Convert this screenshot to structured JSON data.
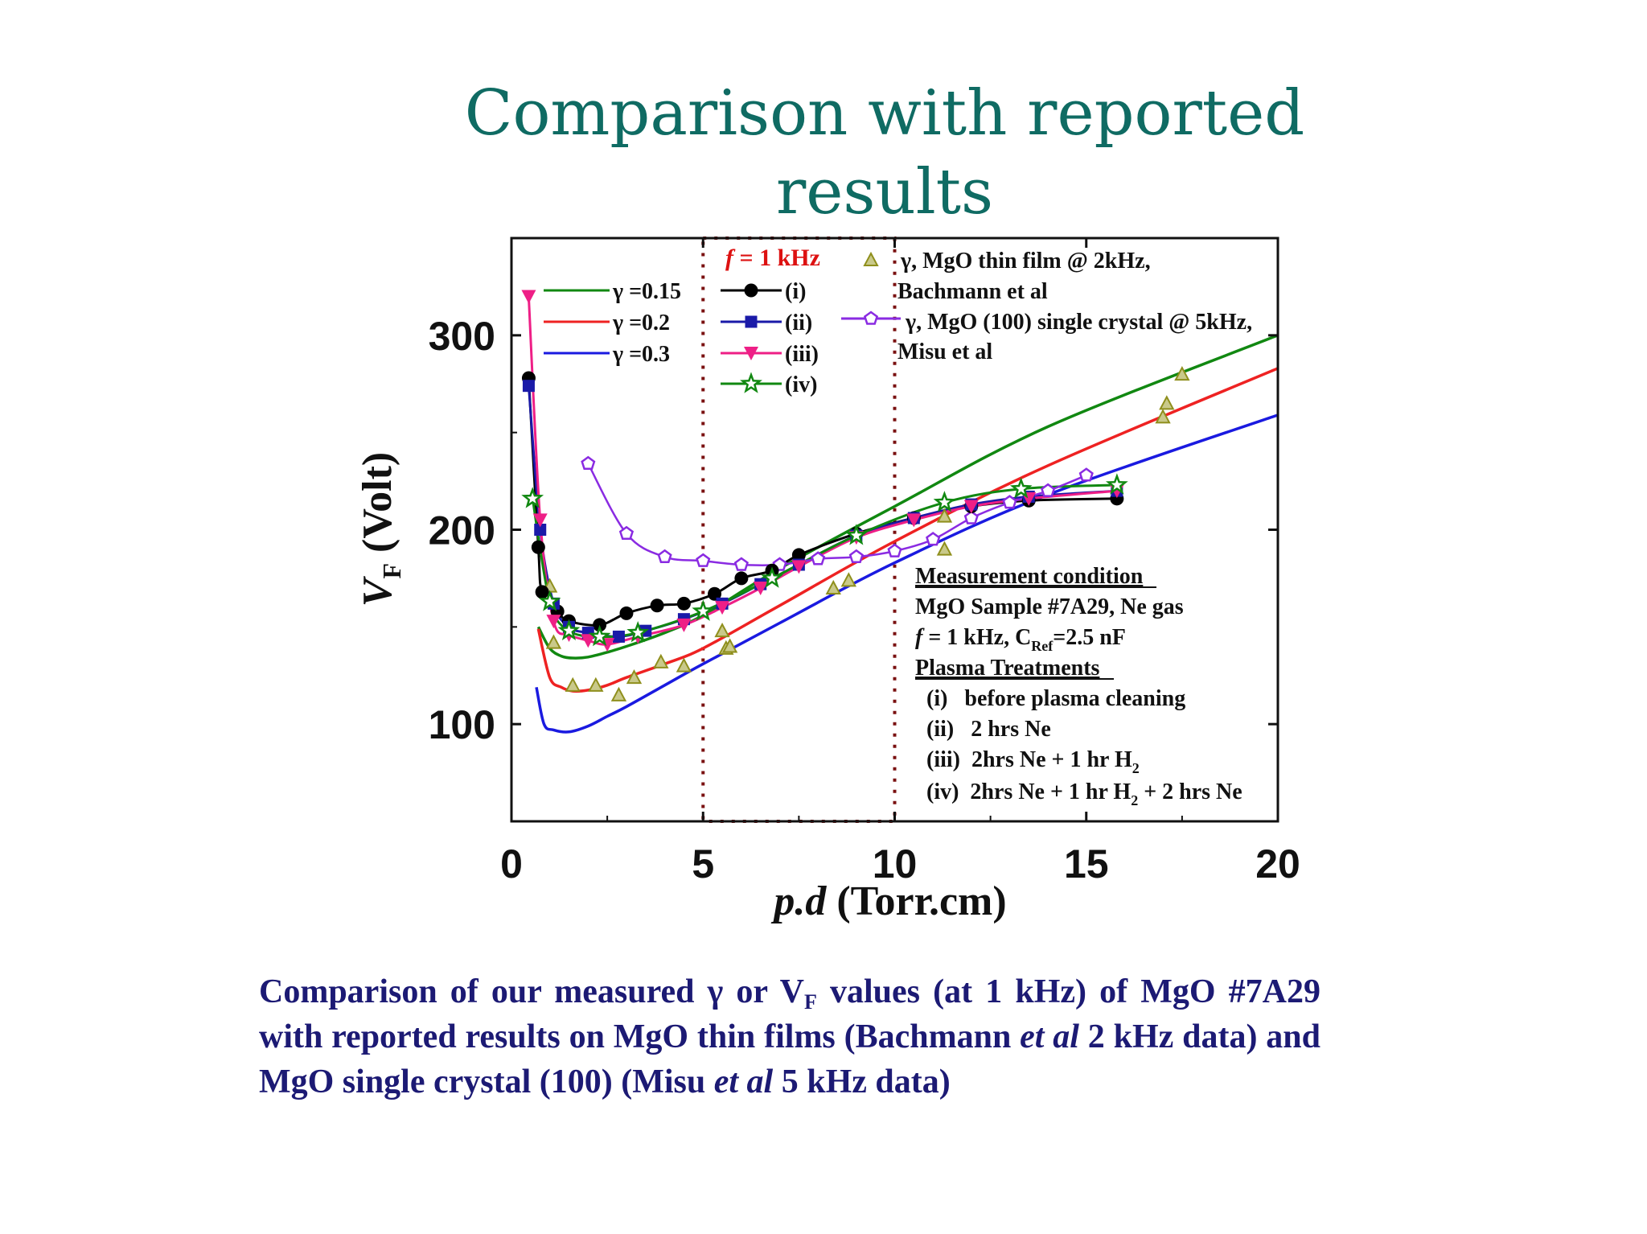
{
  "slide": {
    "title_line1": "Comparison with reported",
    "title_line2": "results",
    "caption_part1": "Comparison of our measured γ or V",
    "caption_sub": "F",
    "caption_part2": " values (at 1 kHz) of MgO #7A29 with reported results on MgO thin films (Bachmann ",
    "caption_etal1": "et al",
    "caption_part3": " 2 kHz data) and MgO single crystal (100) (Misu ",
    "caption_etal2": "et al",
    "caption_part4": " 5 kHz data)"
  },
  "chart_data": {
    "type": "line",
    "xlabel": "p.d (Torr.cm)",
    "xlabel_italic": "p.d",
    "xlabel_rest": " (Torr.cm)",
    "ylabel": "VF (Volt)",
    "ylabel_v": "V",
    "ylabel_sub": "F",
    "ylabel_rest": " (Volt)",
    "xlim": [
      0,
      20
    ],
    "ylim": [
      50,
      350
    ],
    "xticks": [
      0,
      5,
      10,
      15,
      20
    ],
    "yticks": [
      100,
      200,
      300
    ],
    "frequency_label": "f = 1 kHz",
    "highlight_region": [
      5,
      10
    ],
    "theory_curves": [
      {
        "name": "γ =0.15",
        "color": "#118811",
        "x": [
          0.7,
          1.0,
          1.3,
          1.6,
          2.0,
          2.5,
          3.0,
          4.0,
          5.0,
          7.0,
          10.0,
          14.0,
          20.0
        ],
        "y": [
          150,
          139,
          135,
          134,
          134.5,
          137,
          140,
          147,
          156,
          180,
          212,
          253,
          300
        ]
      },
      {
        "name": "γ =0.2",
        "color": "#ee2222",
        "x": [
          0.7,
          1.0,
          1.3,
          1.6,
          2.0,
          2.5,
          3.0,
          4.0,
          5.0,
          7.0,
          10.0,
          14.0,
          20.0
        ],
        "y": [
          149,
          124,
          119,
          117,
          117.5,
          120,
          124,
          131,
          139,
          161,
          194,
          233,
          283
        ]
      },
      {
        "name": "γ =0.3",
        "color": "#1a1ae0",
        "x": [
          0.65,
          0.85,
          1.1,
          1.5,
          2.0,
          2.5,
          3.0,
          4.0,
          5.0,
          7.0,
          10.0,
          14.0,
          20.0
        ],
        "y": [
          119,
          100,
          97,
          96,
          99,
          104,
          109,
          120,
          131,
          152,
          183,
          218,
          259
        ]
      }
    ],
    "measured_series": [
      {
        "name": "(i)",
        "label": "(i)",
        "color": "#000000",
        "marker": "circle",
        "x": [
          0.45,
          0.7,
          0.8,
          1.2,
          1.5,
          2.3,
          3.0,
          3.8,
          4.5,
          5.3,
          6.0,
          6.8,
          7.5,
          9.0,
          10.5,
          12.0,
          13.5,
          15.8
        ],
        "y": [
          278,
          191,
          168,
          158,
          153,
          151,
          157,
          161,
          162,
          167,
          175,
          179,
          187,
          198,
          206,
          212,
          215,
          216
        ]
      },
      {
        "name": "(ii)",
        "label": "(ii)",
        "color": "#1a1aa8",
        "marker": "square",
        "x": [
          0.45,
          0.75,
          1.1,
          1.5,
          2.0,
          2.8,
          3.5,
          4.5,
          5.5,
          6.5,
          7.5,
          9.0,
          10.5,
          12.0,
          13.5,
          15.8
        ],
        "y": [
          274,
          200,
          162,
          150,
          147,
          145,
          148,
          154,
          162,
          172,
          182,
          197,
          206,
          213,
          217,
          220
        ]
      },
      {
        "name": "(iii)",
        "label": "(iii)",
        "color": "#ee1f86",
        "marker": "triangle-down",
        "x": [
          0.45,
          0.75,
          1.1,
          1.5,
          2.0,
          2.5,
          3.3,
          4.5,
          5.5,
          6.5,
          7.5,
          9.0,
          10.5,
          12.0,
          13.5,
          15.8
        ],
        "y": [
          320,
          205,
          153,
          146,
          143,
          141,
          145,
          151,
          160,
          170,
          181,
          196,
          205,
          212,
          216,
          220
        ]
      },
      {
        "name": "(iv)",
        "label": "(iv)",
        "color": "#118811",
        "marker": "star",
        "x": [
          0.55,
          1.0,
          1.5,
          2.3,
          3.3,
          5.0,
          6.8,
          9.0,
          11.3,
          13.3,
          15.8
        ],
        "y": [
          216,
          163,
          148,
          145,
          147,
          158,
          175,
          197,
          214,
          221,
          223
        ]
      }
    ],
    "reported_series": [
      {
        "name": "γ, MgO thin film @ 2kHz, Bachmann et al",
        "legend_line1": "γ, MgO thin film @ 2kHz,",
        "legend_line2": "Bachmann et al",
        "color": "#8f8f1c",
        "marker": "triangle-up",
        "x": [
          1.0,
          1.1,
          1.6,
          2.2,
          2.8,
          3.2,
          3.9,
          4.5,
          5.5,
          5.6,
          5.7,
          8.4,
          8.8,
          11.3,
          11.3,
          17.0,
          17.1,
          17.5
        ],
        "y": [
          171,
          142,
          120,
          120,
          115,
          124,
          132,
          130,
          148,
          139,
          140,
          170,
          174,
          190,
          207,
          258,
          265,
          280
        ]
      },
      {
        "name": "γ, MgO (100) single crystal @ 5kHz, Misu et al",
        "legend_line1": "γ, MgO (100) single crystal @ 5kHz,",
        "legend_line2": "Misu et al",
        "color": "#8a2be2",
        "marker": "pentagon",
        "x": [
          2.0,
          3.0,
          4.0,
          5.0,
          6.0,
          7.0,
          8.0,
          9.0,
          10.0,
          11.0,
          12.0,
          13.0,
          14.0,
          15.0
        ],
        "y": [
          234,
          198,
          186,
          184,
          182,
          182,
          185,
          186,
          189,
          195,
          206,
          214,
          220,
          228
        ]
      }
    ]
  },
  "measurement_box": {
    "heading": "Measurement condition",
    "line1": "MgO Sample #7A29, Ne gas",
    "line2_f": "f",
    "line2_a": " = 1 kHz, C",
    "line2_sub": "Ref",
    "line2_b": "=2.5 nF",
    "heading2": "Plasma Treatments",
    "t1": "(i)   before plasma cleaning",
    "t2": "(ii)   2 hrs Ne",
    "t3_a": "(iii)  2hrs Ne + 1 hr H",
    "t3_sub": "2",
    "t4_a": "(iv)  2hrs Ne + 1 hr H",
    "t4_sub": "2",
    "t4_b": " + 2 hrs Ne"
  }
}
